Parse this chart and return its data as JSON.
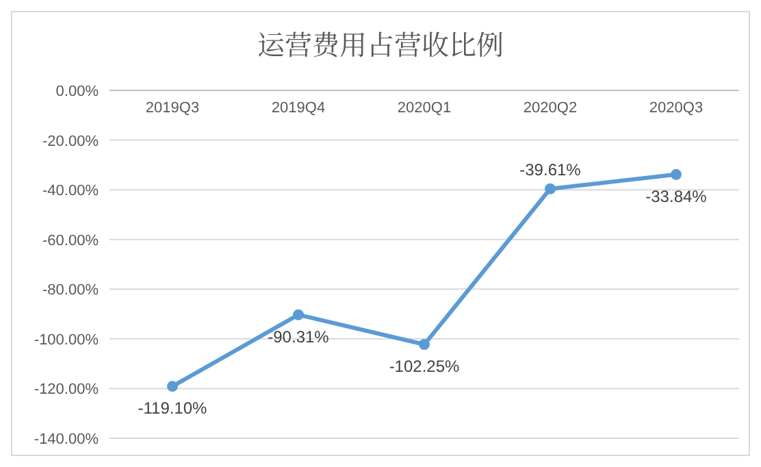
{
  "chart_data": {
    "type": "line",
    "title": "运营费用占营收比例",
    "categories": [
      "2019Q3",
      "2019Q4",
      "2020Q1",
      "2020Q2",
      "2020Q3"
    ],
    "series": [
      {
        "color": "#5b9bd5",
        "values": [
          -119.1,
          -90.31,
          -102.25,
          -39.61,
          -33.84
        ],
        "value_labels": [
          "-119.10%",
          "-90.31%",
          "-102.25%",
          "-39.61%",
          "-33.84%"
        ]
      }
    ],
    "ylim": [
      -140,
      0
    ],
    "yticks": [
      {
        "value": 0,
        "label": "0.00%"
      },
      {
        "value": -20,
        "label": "-20.00%"
      },
      {
        "value": -40,
        "label": "-40.00%"
      },
      {
        "value": -60,
        "label": "-60.00%"
      },
      {
        "value": -80,
        "label": "-80.00%"
      },
      {
        "value": -100,
        "label": "-100.00%"
      },
      {
        "value": -120,
        "label": "-120.00%"
      },
      {
        "value": -140,
        "label": "-140.00%"
      }
    ],
    "grid": "y",
    "marker": "circle",
    "line_style": "solid"
  }
}
